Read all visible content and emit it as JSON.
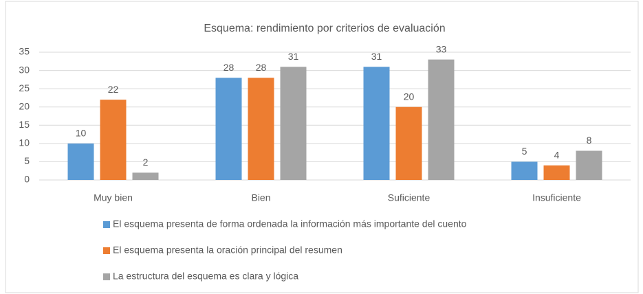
{
  "chart_data": {
    "type": "bar",
    "title": "Esquema: rendimiento por criterios de evaluación",
    "categories": [
      "Muy bien",
      "Bien",
      "Suficiente",
      "Insuficiente"
    ],
    "series": [
      {
        "name": "El esquema presenta de forma ordenada la información más importante del cuento",
        "color": "#5b9bd5",
        "values": [
          10,
          28,
          31,
          5
        ]
      },
      {
        "name": "El esquema presenta la oración principal del resumen",
        "color": "#ed7d31",
        "values": [
          22,
          28,
          20,
          4
        ]
      },
      {
        "name": "La estructura del esquema es clara y lógica",
        "color": "#a5a5a5",
        "values": [
          2,
          31,
          33,
          8
        ]
      }
    ],
    "ylim": [
      0,
      35
    ],
    "yticks": [
      0,
      5,
      10,
      15,
      20,
      25,
      30,
      35
    ],
    "grid": true,
    "legend": "bottom"
  }
}
